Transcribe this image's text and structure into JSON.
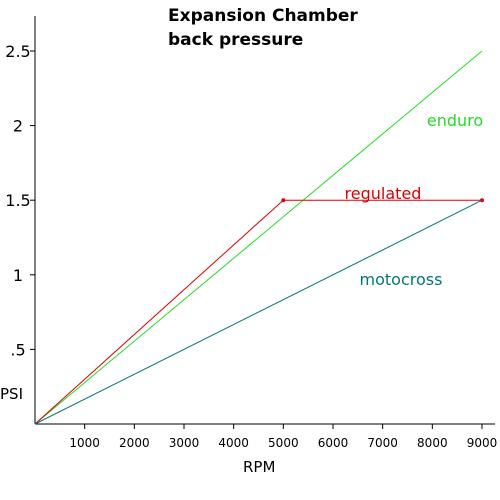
{
  "chart_data": {
    "type": "line",
    "title_lines": [
      "Expansion Chamber",
      "back pressure"
    ],
    "xlabel": "RPM",
    "ylabel": "PSI",
    "xlim": [
      0,
      9000
    ],
    "ylim": [
      0,
      2.5
    ],
    "x_ticks": [
      1000,
      2000,
      3000,
      4000,
      5000,
      6000,
      7000,
      8000,
      9000
    ],
    "y_ticks": [
      {
        "value": 0.5,
        "label": ".5"
      },
      {
        "value": 1,
        "label": "1"
      },
      {
        "value": 1.5,
        "label": "1.5"
      },
      {
        "value": 2,
        "label": "2"
      },
      {
        "value": 2.5,
        "label": "2.5"
      }
    ],
    "series": [
      {
        "name": "enduro",
        "color": "#22dd22",
        "points": [
          [
            0,
            0
          ],
          [
            9000,
            2.5
          ]
        ],
        "markers": false
      },
      {
        "name": "regulated",
        "color": "#dd0000",
        "points": [
          [
            0,
            0
          ],
          [
            5000,
            1.5
          ],
          [
            9000,
            1.5
          ]
        ],
        "markers": true
      },
      {
        "name": "motocross",
        "color": "#007777",
        "points": [
          [
            0,
            0
          ],
          [
            9000,
            1.5
          ]
        ],
        "markers": false
      }
    ],
    "grid": false
  }
}
